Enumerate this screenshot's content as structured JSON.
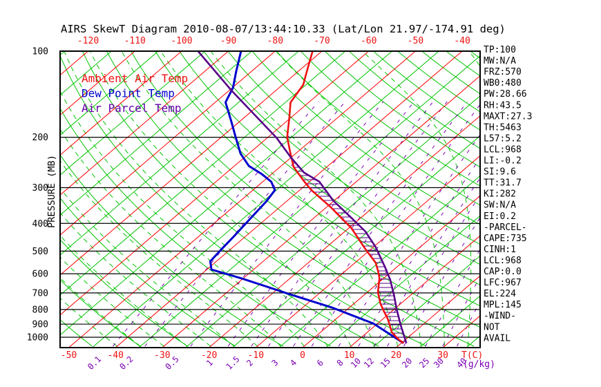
{
  "title": "AIRS SkewT Diagram 2010-08-07/13:44:10.33 (Lat/Lon 21.97/-174.91 deg)",
  "legend": {
    "entries": [
      {
        "id": "ambient",
        "label": "Ambient Air Temp",
        "color": "#ee1111"
      },
      {
        "id": "dew",
        "label": "Dew Point Temp",
        "color": "#0000cc"
      },
      {
        "id": "parcel",
        "label": "Air Parcel Temp",
        "color": "#6600aa"
      }
    ]
  },
  "axes": {
    "pressure_label": "PRESSURE (MB)",
    "pressure_ticks": [
      100,
      200,
      300,
      400,
      500,
      600,
      700,
      800,
      900,
      1000
    ],
    "top_temp_ticks": [
      -120,
      -110,
      -100,
      -90,
      -80,
      -70,
      -60,
      -50,
      -40
    ],
    "bottom_temp_ticks": [
      -50,
      -40,
      -30,
      -20,
      -10,
      0,
      10,
      20,
      30
    ],
    "temp_unit_label": "T(C)",
    "mixing_ratio_ticks": [
      "0.1",
      "0.2",
      "0.5",
      "1",
      "1.5",
      "2",
      "3",
      "4",
      "6",
      "8",
      "10",
      "12",
      "15",
      "20",
      "25",
      "30",
      "40"
    ],
    "mixing_unit_label": "(g/kg)"
  },
  "stats_panel": {
    "lines": [
      "TP:100",
      "MW:N/A",
      "FRZ:570",
      "WB0:480",
      "PW:28.66",
      "RH:43.5",
      "MAXT:27.3",
      "TH:5463",
      "L57:5.2",
      "LCL:968",
      "LI:-0.2",
      "SI:9.6",
      "TT:31.7",
      "KI:282",
      "SW:N/A",
      "EI:0.2",
      "-PARCEL-",
      "CAPE:735",
      "CINH:1",
      "LCL:968",
      "CAP:0.0",
      "LFC:967",
      "EL:224",
      "MPL:145",
      "-WIND-",
      "NOT",
      "AVAIL"
    ]
  },
  "colors": {
    "isotherm_major": "#ff0000",
    "isotherm_minor": "#00c400",
    "dry_adiabat": "#00c400",
    "moist_adiabat": "#00c400",
    "mixing_ratio": "#7a00b4",
    "pressure_line": "#000000",
    "border": "#000000",
    "ambient": "#ee1111",
    "dew": "#0000cc",
    "parcel": "#550088",
    "hatch": "#550088",
    "tick_text_temp": "#ee1111",
    "tick_text_mixing": "#7a00b4",
    "text": "#000000"
  },
  "chart_data": {
    "type": "line",
    "subtype": "skew-t-log-p",
    "title": "AIRS SkewT Diagram 2010-08-07/13:44:10.33 (Lat/Lon 21.97/-174.91 deg)",
    "xlabel": "T(C)",
    "ylabel": "PRESSURE (MB)",
    "pressure_range_mb": [
      100,
      1075
    ],
    "temp_axis_bottom_ticks_c": [
      -50,
      -40,
      -30,
      -20,
      -10,
      0,
      10,
      20,
      30
    ],
    "temp_axis_top_ticks_c": [
      -120,
      -110,
      -100,
      -90,
      -80,
      -70,
      -60,
      -50,
      -40
    ],
    "mixing_ratio_lines_gkg": [
      0.1,
      0.2,
      0.5,
      1,
      1.5,
      2,
      3,
      4,
      6,
      8,
      10,
      12,
      15,
      20,
      25,
      30,
      40
    ],
    "isotherm_step_c": 10,
    "legend_position": "upper-left",
    "grid": "skewed",
    "series": [
      {
        "name": "Ambient Air Temp",
        "units": [
          "pressure_mb",
          "temp_c"
        ],
        "points": [
          [
            100,
            -72.0
          ],
          [
            120,
            -67.7
          ],
          [
            131,
            -65.6
          ],
          [
            151,
            -63.9
          ],
          [
            171,
            -60.3
          ],
          [
            200,
            -55.9
          ],
          [
            225,
            -51.6
          ],
          [
            254,
            -47.1
          ],
          [
            286,
            -41.1
          ],
          [
            306,
            -37.5
          ],
          [
            351,
            -29.1
          ],
          [
            415,
            -19.5
          ],
          [
            491,
            -11.3
          ],
          [
            549,
            -5.6
          ],
          [
            587,
            -3.0
          ],
          [
            620,
            -1.0
          ],
          [
            697,
            2.3
          ],
          [
            764,
            5.7
          ],
          [
            815,
            8.5
          ],
          [
            866,
            11.2
          ],
          [
            962,
            15.3
          ],
          [
            1018,
            18.5
          ],
          [
            1049,
            20.5
          ]
        ]
      },
      {
        "name": "Dew Point Temp",
        "units": [
          "pressure_mb",
          "temp_c"
        ],
        "points": [
          [
            100,
            -87.3
          ],
          [
            118,
            -83.2
          ],
          [
            134,
            -79.9
          ],
          [
            151,
            -77.8
          ],
          [
            177,
            -71.6
          ],
          [
            199,
            -67.1
          ],
          [
            228,
            -61.8
          ],
          [
            252,
            -56.9
          ],
          [
            269,
            -52.1
          ],
          [
            286,
            -48.2
          ],
          [
            306,
            -45.3
          ],
          [
            336,
            -44.3
          ],
          [
            375,
            -43.6
          ],
          [
            444,
            -42.5
          ],
          [
            496,
            -41.9
          ],
          [
            543,
            -41.3
          ],
          [
            580,
            -39.0
          ],
          [
            623,
            -30.3
          ],
          [
            708,
            -16.0
          ],
          [
            787,
            -3.8
          ],
          [
            895,
            9.1
          ],
          [
            1049,
            20.5
          ]
        ]
      },
      {
        "name": "Air Parcel Temp",
        "units": [
          "pressure_mb",
          "temp_c"
        ],
        "points": [
          [
            100,
            -96.5
          ],
          [
            137,
            -79.6
          ],
          [
            171,
            -67.1
          ],
          [
            201,
            -58.0
          ],
          [
            236,
            -49.9
          ],
          [
            266,
            -43.4
          ],
          [
            286,
            -37.9
          ],
          [
            333,
            -30.2
          ],
          [
            382,
            -22.1
          ],
          [
            427,
            -15.6
          ],
          [
            483,
            -9.6
          ],
          [
            566,
            -2.7
          ],
          [
            630,
            1.8
          ],
          [
            712,
            6.4
          ],
          [
            800,
            10.6
          ],
          [
            908,
            15.4
          ],
          [
            1049,
            21.1
          ]
        ]
      }
    ]
  }
}
